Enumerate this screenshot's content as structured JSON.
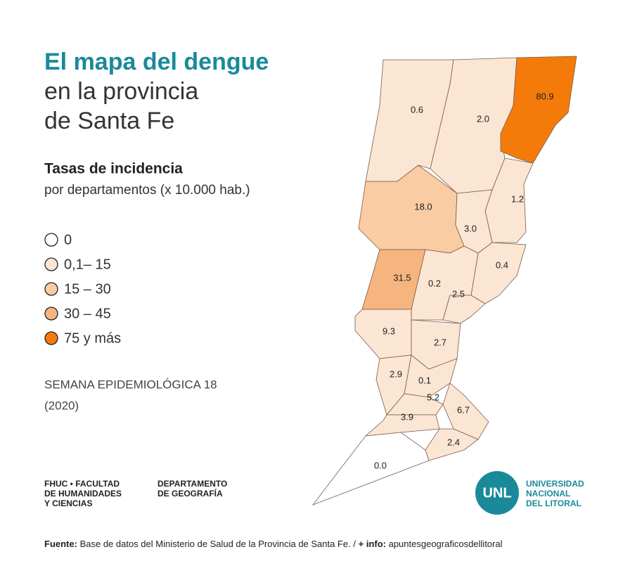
{
  "header": {
    "title": "El mapa del dengue",
    "subtitle_line1": "en la provincia",
    "subtitle_line2": "de Santa Fe"
  },
  "legend": {
    "title": "Tasas de incidencia",
    "subtitle": "por departamentos (x 10.000 hab.)",
    "items": [
      {
        "label": "0",
        "color": "#ffffff"
      },
      {
        "label": "0,1– 15",
        "color": "#fbe6d3"
      },
      {
        "label": "15 – 30",
        "color": "#f9cca3"
      },
      {
        "label": "30 – 45",
        "color": "#f6b47f"
      },
      {
        "label": "75 y más",
        "color": "#f47b0a"
      }
    ]
  },
  "period": {
    "line1": "SEMANA EPIDEMIOLÓGICA 18",
    "line2": "(2020)"
  },
  "map": {
    "regions": [
      {
        "label": "0.6"
      },
      {
        "label": "2.0"
      },
      {
        "label": "80.9"
      },
      {
        "label": "18.0"
      },
      {
        "label": "1.2"
      },
      {
        "label": "3.0"
      },
      {
        "label": "0.4"
      },
      {
        "label": "31.5"
      },
      {
        "label": "0.2"
      },
      {
        "label": "2.5"
      },
      {
        "label": "9.3"
      },
      {
        "label": "2.7"
      },
      {
        "label": "2.9"
      },
      {
        "label": "0.1"
      },
      {
        "label": "5.2"
      },
      {
        "label": "6.7"
      },
      {
        "label": "3.9"
      },
      {
        "label": "2.4"
      },
      {
        "label": "0.0"
      }
    ]
  },
  "footer": {
    "org1": [
      "FHUC • FACULTAD",
      "DE HUMANIDADES",
      "Y CIENCIAS"
    ],
    "org2": [
      "DEPARTAMENTO",
      "DE GEOGRAFÍA"
    ],
    "logo": {
      "mark": "UNL",
      "lines": [
        "UNIVERSIDAD",
        "NACIONAL",
        "DEL LITORAL"
      ]
    },
    "source_label": "Fuente:",
    "source_text": "Base de datos del Ministerio de Salud de la Provincia de Santa Fe. /",
    "info_label": "+ info:",
    "info_text": "apuntesgeograficosdellitoral"
  }
}
